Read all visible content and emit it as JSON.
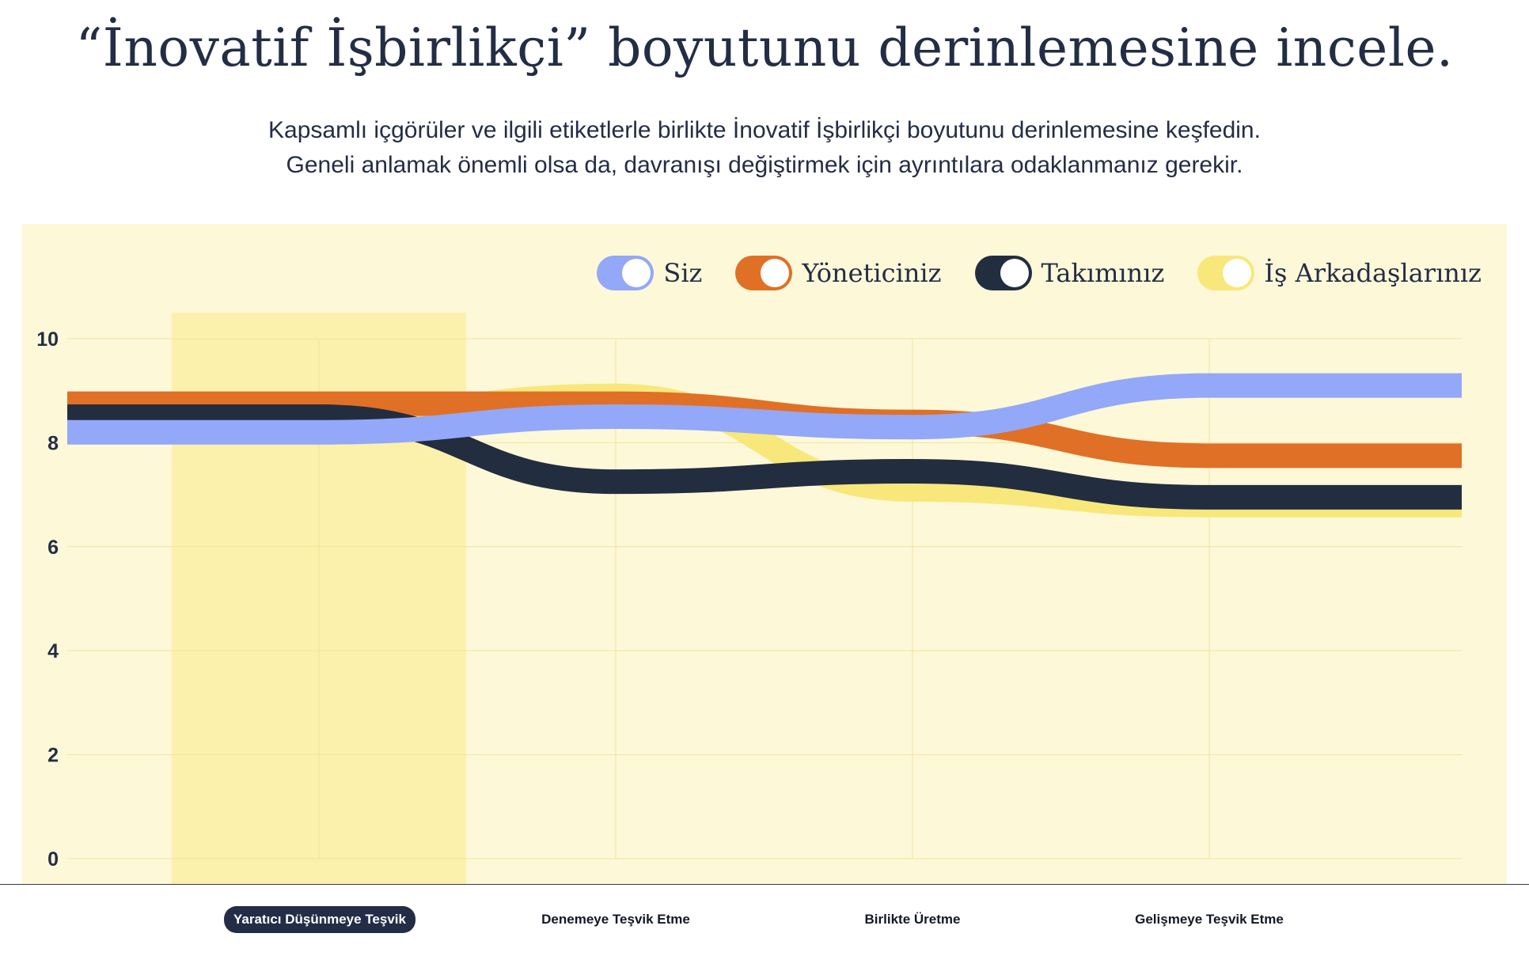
{
  "header": {
    "title": "“İnovatif İşbirlikçi” boyutunu derinlemesine incele.",
    "subtitle_lines": [
      "Kapsamlı içgörüler ve ilgili etiketlerle birlikte İnovatif İşbirlikçi boyutunu derinlemesine keşfedin.",
      "Geneli anlamak önemli olsa da, davranışı değiştirmek için ayrıntılara odaklanmanız gerekir."
    ]
  },
  "legend": [
    {
      "name": "Siz",
      "color": "#93a8f8",
      "toggled_on": true
    },
    {
      "name": "Yöneticiniz",
      "color": "#e07026",
      "toggled_on": true
    },
    {
      "name": "Takımınız",
      "color": "#232d40",
      "toggled_on": true
    },
    {
      "name": "İş Arkadaşlarınız",
      "color": "#f8e77a",
      "toggled_on": true
    }
  ],
  "tabs": [
    {
      "label": "Yaratıcı Düşünmeye Teşvik",
      "active": true
    },
    {
      "label": "Denemeye Teşvik Etme",
      "active": false
    },
    {
      "label": "Birlikte Üretme",
      "active": false
    },
    {
      "label": "Gelişmeye Teşvik Etme",
      "active": false
    }
  ],
  "chart_data": {
    "type": "line",
    "categories": [
      "Yaratıcı Düşünmeye Teşvik",
      "Denemeye Teşvik Etme",
      "Birlikte Üretme",
      "Gelişmeye Teşvik Etme"
    ],
    "highlighted_category": "Yaratıcı Düşünmeye Teşvik",
    "ylim": [
      0,
      10
    ],
    "yticks": [
      0,
      2,
      4,
      6,
      8,
      10
    ],
    "grid": true,
    "legend_position": "top-right",
    "series": [
      {
        "name": "İş Arkadaşlarınız",
        "color": "#f8e77a",
        "values": [
          8.5,
          8.9,
          7.1,
          6.8
        ]
      },
      {
        "name": "Yöneticiniz",
        "color": "#e07026",
        "values": [
          8.75,
          8.75,
          8.4,
          7.75
        ]
      },
      {
        "name": "Takımınız",
        "color": "#232d40",
        "values": [
          8.5,
          7.25,
          7.45,
          6.95
        ]
      },
      {
        "name": "Siz",
        "color": "#93a8f8",
        "values": [
          8.2,
          8.5,
          8.3,
          9.1
        ]
      }
    ]
  }
}
